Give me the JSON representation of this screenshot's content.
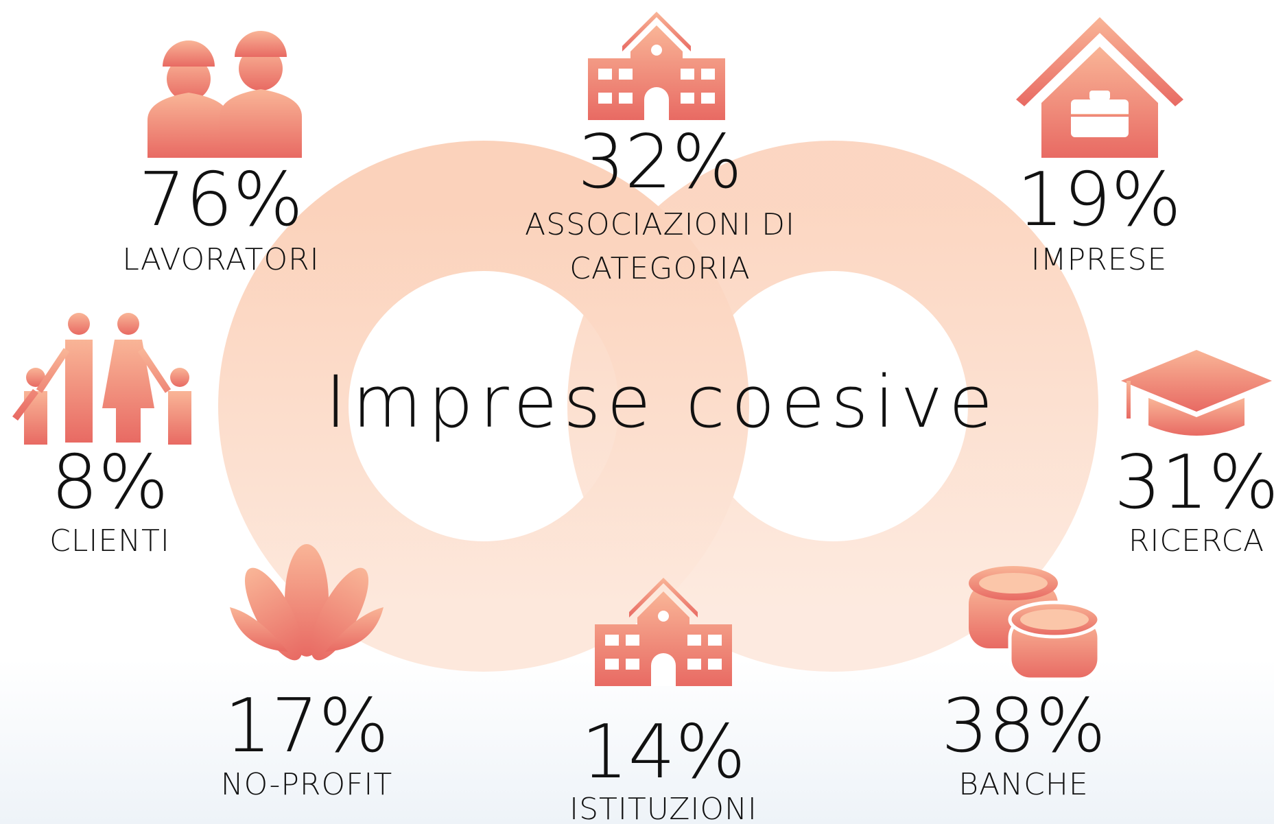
{
  "title": "Imprese coesive",
  "items": [
    {
      "value": "76%",
      "label": [
        "LAVORATORI"
      ]
    },
    {
      "value": "32%",
      "label": [
        "ASSOCIAZIONI DI",
        "CATEGORIA"
      ]
    },
    {
      "value": "19%",
      "label": [
        "IMPRESE"
      ]
    },
    {
      "value": "8%",
      "label": [
        "CLIENTI"
      ]
    },
    {
      "value": "31%",
      "label": [
        "RICERCA"
      ]
    },
    {
      "value": "17%",
      "label": [
        "NO-PROFIT"
      ]
    },
    {
      "value": "14%",
      "label": [
        "ISTITUZIONI"
      ]
    },
    {
      "value": "38%",
      "label": [
        "BANCHE"
      ]
    }
  ]
}
